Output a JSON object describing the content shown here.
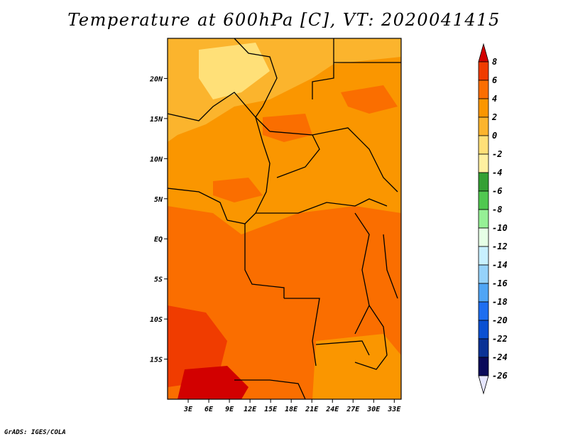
{
  "title": "Temperature at 600hPa [C], VT: 2020041415",
  "credit": "GrADS: IGES/COLA",
  "map": {
    "lon_range": [
      0,
      34
    ],
    "lat_range": [
      -20,
      25
    ],
    "lon_ticks": [
      "3E",
      "6E",
      "9E",
      "12E",
      "15E",
      "18E",
      "21E",
      "24E",
      "27E",
      "30E",
      "33E"
    ],
    "lat_ticks": [
      "20N",
      "15N",
      "10N",
      "5N",
      "EQ",
      "5S",
      "10S",
      "15S"
    ]
  },
  "colorbar": {
    "labels": [
      "8",
      "6",
      "4",
      "2",
      "0",
      "-2",
      "-4",
      "-6",
      "-8",
      "-10",
      "-12",
      "-14",
      "-16",
      "-18",
      "-20",
      "-22",
      "-24",
      "-26"
    ],
    "colors": [
      "#d20000",
      "#f03c00",
      "#fa6e00",
      "#fa9600",
      "#fbb42d",
      "#ffe078",
      "#fff0a0",
      "#34a034",
      "#50c850",
      "#96f096",
      "#e6ffe6",
      "#c8f0ff",
      "#96d2fa",
      "#50a5f5",
      "#1e6ef0",
      "#0a50d2",
      "#0a3296",
      "#0a0a5a"
    ],
    "top_arrow_color": "#d20000",
    "bottom_arrow_color": "#e6e6ff"
  }
}
